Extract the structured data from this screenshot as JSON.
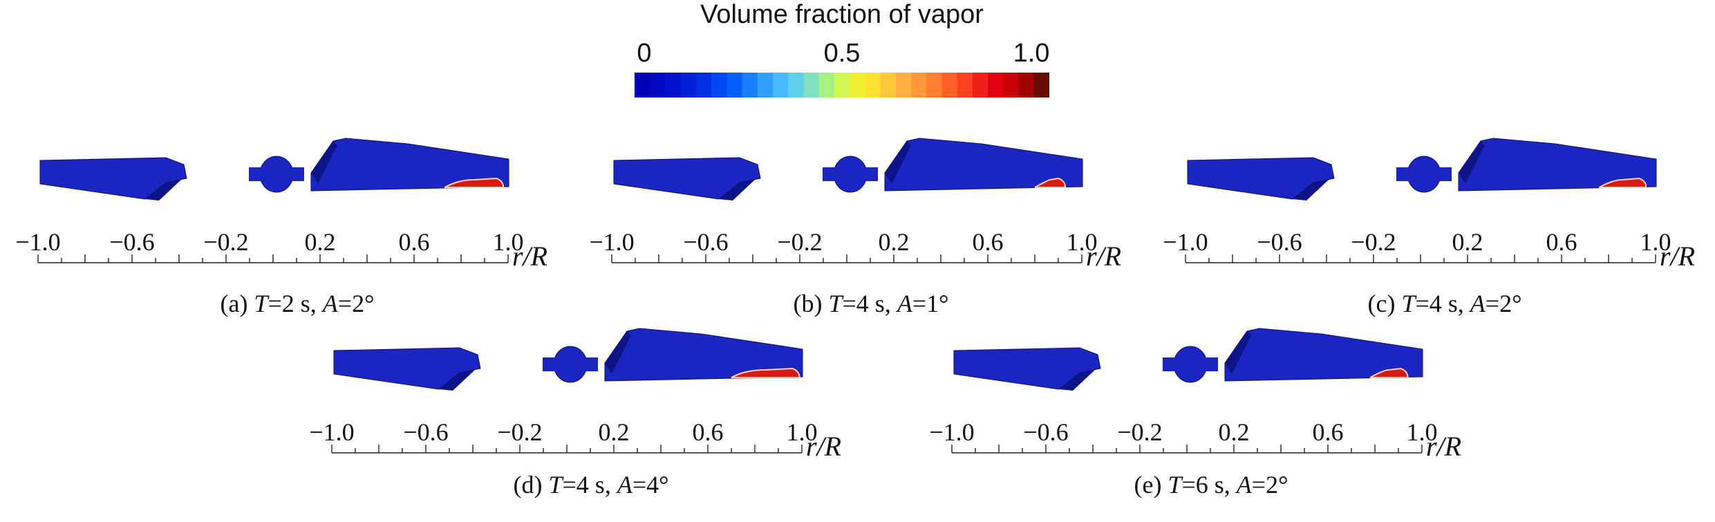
{
  "colorbar": {
    "title": "Volume fraction of vapor",
    "labels": [
      "0",
      "0.5",
      "1.0"
    ],
    "label_values": [
      0,
      0.5,
      1.0
    ],
    "colors": [
      "#0000b4",
      "#0008c0",
      "#0010cc",
      "#0020d8",
      "#0030e4",
      "#0048f0",
      "#0060f8",
      "#1880ff",
      "#30a0ff",
      "#48b8ff",
      "#60d0e8",
      "#80e0c0",
      "#a8f080",
      "#d0f850",
      "#f0f030",
      "#ffe030",
      "#ffc838",
      "#ffb040",
      "#ff9838",
      "#ff8030",
      "#ff6028",
      "#ff4020",
      "#f02018",
      "#e00010",
      "#c80008",
      "#a00000",
      "#6a0a00"
    ]
  },
  "axis": {
    "tick_labels": [
      "−1.0",
      "−0.6",
      "−0.2",
      "0.2",
      "0.6",
      "1.0"
    ],
    "tick_values": [
      -1.0,
      -0.6,
      -0.2,
      0.2,
      0.6,
      1.0
    ],
    "name": "r/R"
  },
  "panels": [
    {
      "id": "a",
      "prefix": "(a) ",
      "t_var": "T",
      "t_val": "=2 s, ",
      "a_var": "A",
      "a_val": "=2°",
      "cavity_start": 0.73,
      "cavity_end": 0.98
    },
    {
      "id": "b",
      "prefix": "(b) ",
      "t_var": "T",
      "t_val": "=4 s, ",
      "a_var": "A",
      "a_val": "=1°",
      "cavity_start": 0.8,
      "cavity_end": 0.93
    },
    {
      "id": "c",
      "prefix": "(c) ",
      "t_var": "T",
      "t_val": "=4 s, ",
      "a_var": "A",
      "a_val": "=2°",
      "cavity_start": 0.76,
      "cavity_end": 0.96
    },
    {
      "id": "d",
      "prefix": "(d) ",
      "t_var": "T",
      "t_val": "=4 s, ",
      "a_var": "A",
      "a_val": "=4°",
      "cavity_start": 0.7,
      "cavity_end": 0.99
    },
    {
      "id": "e",
      "prefix": "(e) ",
      "t_var": "T",
      "t_val": "=6 s, ",
      "a_var": "A",
      "a_val": "=2°",
      "cavity_start": 0.78,
      "cavity_end": 0.94
    }
  ]
}
